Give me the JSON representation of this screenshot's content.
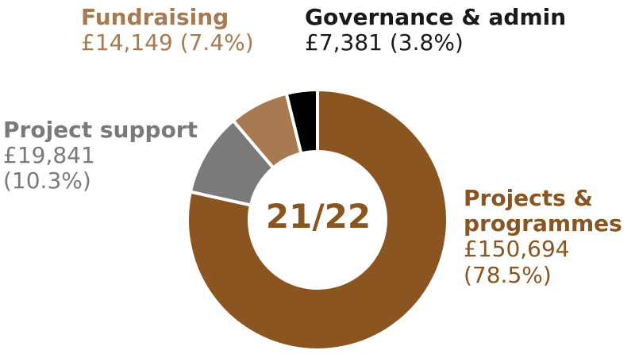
{
  "chart_data": {
    "type": "pie",
    "center_label": "21/22",
    "slices": [
      {
        "name": "Projects & programmes",
        "value_text": "£150,694",
        "value": 150694,
        "percent": 78.5,
        "percent_text": "(78.5%)",
        "color": "#8a5520"
      },
      {
        "name": "Project support",
        "value_text": "£19,841",
        "value": 19841,
        "percent": 10.3,
        "percent_text": "(10.3%)",
        "color": "#7a7a7a"
      },
      {
        "name": "Fundraising",
        "value_text": "£14,149",
        "value": 14149,
        "percent": 7.4,
        "percent_text": "(7.4%)",
        "color": "#a87a52"
      },
      {
        "name": "Governance & admin",
        "value_text": "£7,381",
        "value": 7381,
        "percent": 3.8,
        "percent_text": "(3.8%)",
        "color": "#000000"
      }
    ],
    "labels": {
      "main_line1": "Projects &",
      "main_line2": "programmes",
      "support_pct_gov": "£7,381 (3.8%)",
      "fund_combined": "£14,149 (7.4%)"
    }
  }
}
